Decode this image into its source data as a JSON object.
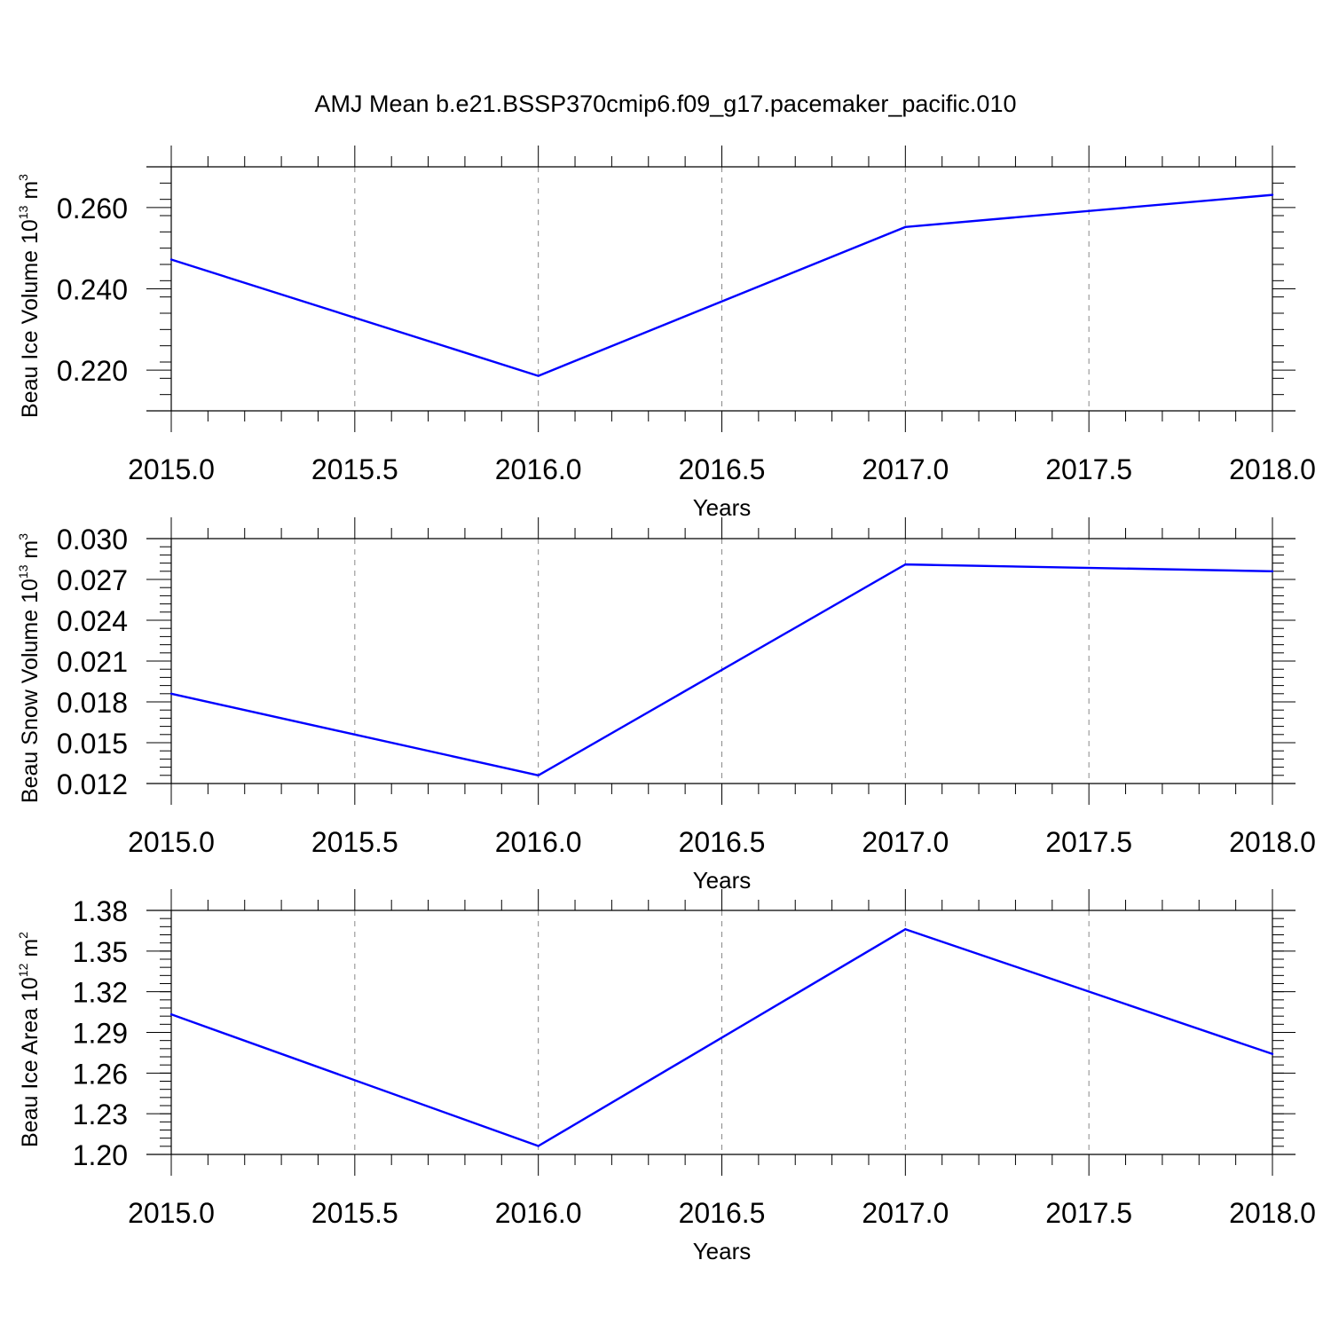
{
  "title": "AMJ Mean b.e21.BSSP370cmip6.f09_g17.pacemaker_pacific.010",
  "line_color": "#0000ff",
  "chart_data": [
    {
      "type": "line",
      "x": [
        2015.0,
        2016.0,
        2017.0,
        2018.0
      ],
      "values": [
        0.2472,
        0.2186,
        0.2552,
        0.2631
      ],
      "xlabel": "Years",
      "ylabel": {
        "text": "Beau Ice Volume 10",
        "exp1": "13",
        "unit": " m",
        "exp2": "3"
      },
      "xlim": [
        2015.0,
        2018.0
      ],
      "ylim": [
        0.21,
        0.27
      ],
      "xticks": [
        2015.0,
        2015.5,
        2016.0,
        2016.5,
        2017.0,
        2017.5,
        2018.0
      ],
      "xtick_labels": [
        "2015.0",
        "2015.5",
        "2016.0",
        "2016.5",
        "2017.0",
        "2017.5",
        "2018.0"
      ],
      "yticks": [
        0.22,
        0.24,
        0.26
      ],
      "ytick_labels": [
        "0.220",
        "0.240",
        "0.260"
      ],
      "yminor_step": 0.004,
      "grid": "vertical dashed"
    },
    {
      "type": "line",
      "x": [
        2015.0,
        2016.0,
        2017.0,
        2018.0
      ],
      "values": [
        0.0186,
        0.0126,
        0.0281,
        0.0276
      ],
      "xlabel": "Years",
      "ylabel": {
        "text": "Beau Snow Volume 10",
        "exp1": "13",
        "unit": " m",
        "exp2": "3"
      },
      "xlim": [
        2015.0,
        2018.0
      ],
      "ylim": [
        0.012,
        0.03
      ],
      "xticks": [
        2015.0,
        2015.5,
        2016.0,
        2016.5,
        2017.0,
        2017.5,
        2018.0
      ],
      "xtick_labels": [
        "2015.0",
        "2015.5",
        "2016.0",
        "2016.5",
        "2017.0",
        "2017.5",
        "2018.0"
      ],
      "yticks": [
        0.012,
        0.015,
        0.018,
        0.021,
        0.024,
        0.027,
        0.03
      ],
      "ytick_labels": [
        "0.012",
        "0.015",
        "0.018",
        "0.021",
        "0.024",
        "0.027",
        "0.030"
      ],
      "yminor_step": 0.0006,
      "grid": "vertical dashed"
    },
    {
      "type": "line",
      "x": [
        2015.0,
        2016.0,
        2017.0,
        2018.0
      ],
      "values": [
        1.3033,
        1.2062,
        1.3661,
        1.2741
      ],
      "xlabel": "Years",
      "ylabel": {
        "text": "Beau Ice Area 10",
        "exp1": "12",
        "unit": " m",
        "exp2": "2"
      },
      "xlim": [
        2015.0,
        2018.0
      ],
      "ylim": [
        1.2,
        1.38
      ],
      "xticks": [
        2015.0,
        2015.5,
        2016.0,
        2016.5,
        2017.0,
        2017.5,
        2018.0
      ],
      "xtick_labels": [
        "2015.0",
        "2015.5",
        "2016.0",
        "2016.5",
        "2017.0",
        "2017.5",
        "2018.0"
      ],
      "yticks": [
        1.2,
        1.23,
        1.26,
        1.29,
        1.32,
        1.35,
        1.38
      ],
      "ytick_labels": [
        "1.20",
        "1.23",
        "1.26",
        "1.29",
        "1.32",
        "1.35",
        "1.38"
      ],
      "yminor_step": 0.006,
      "grid": "vertical dashed"
    }
  ]
}
